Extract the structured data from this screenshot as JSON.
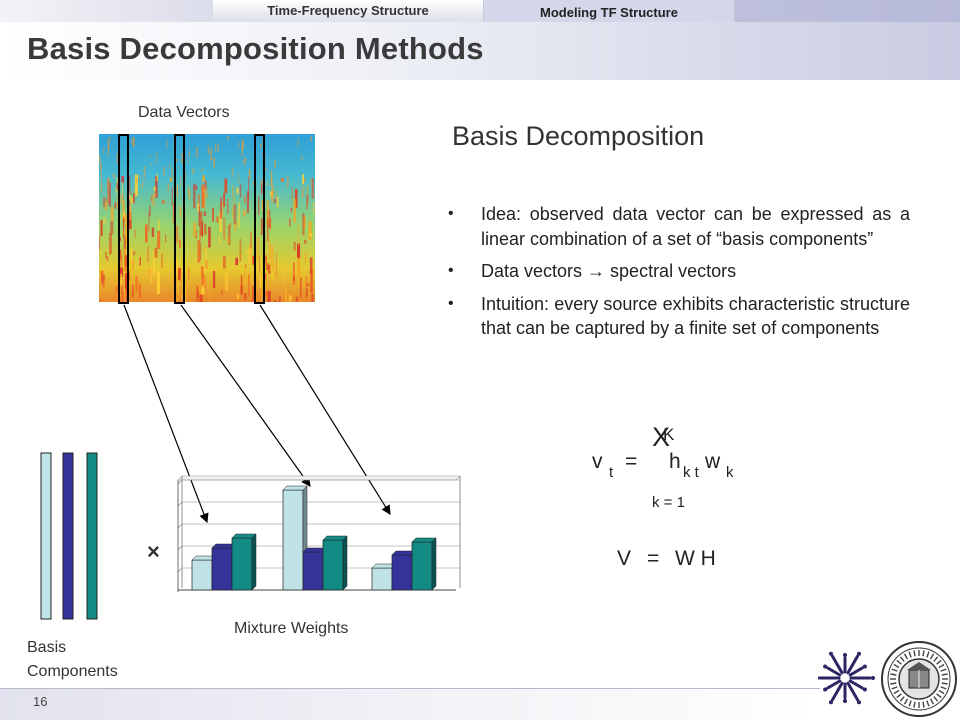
{
  "header": {
    "tab_active": "Time-Frequency Structure",
    "tab_inactive": "Modeling TF Structure",
    "title": "Basis Decomposition Methods"
  },
  "left": {
    "data_vectors_label": "Data Vectors",
    "times_symbol": "×",
    "mixture_weights_label": "Mixture Weights",
    "basis_label_line1": "Basis",
    "basis_label_line2": "Components",
    "basis_colors": [
      "#bfe2e6",
      "#333399",
      "#138a84"
    ],
    "weights": [
      {
        "name": "",
        "color": "#bfe2e6",
        "values": [
          0.3,
          1.0,
          0.22
        ]
      },
      {
        "name": "",
        "color": "#333399",
        "values": [
          0.42,
          0.38,
          0.35
        ]
      },
      {
        "name": "",
        "color": "#138a84",
        "values": [
          0.52,
          0.5,
          0.48
        ]
      }
    ]
  },
  "right": {
    "subtitle": "Basis Decomposition",
    "bullet_symbol": "•",
    "bullets": [
      "Idea: observed data vector can be expressed as a linear combination of a set of “basis components”",
      "Data vectors  → spectral vectors",
      "Intuition: every source exhibits characteristic structure that can be captured by a finite set of components"
    ],
    "equation": {
      "sum_symbol": "X",
      "sum_upper": "K",
      "lhs_v": "v",
      "lhs_t": "t",
      "equals": "=",
      "h": "h",
      "kt": "k t",
      "w": "w",
      "k": "k",
      "lower": "k = 1"
    },
    "matrix_equation": {
      "V": "V",
      "equals": "=",
      "WH": "W H"
    }
  },
  "footer": {
    "page_number": "16"
  }
}
